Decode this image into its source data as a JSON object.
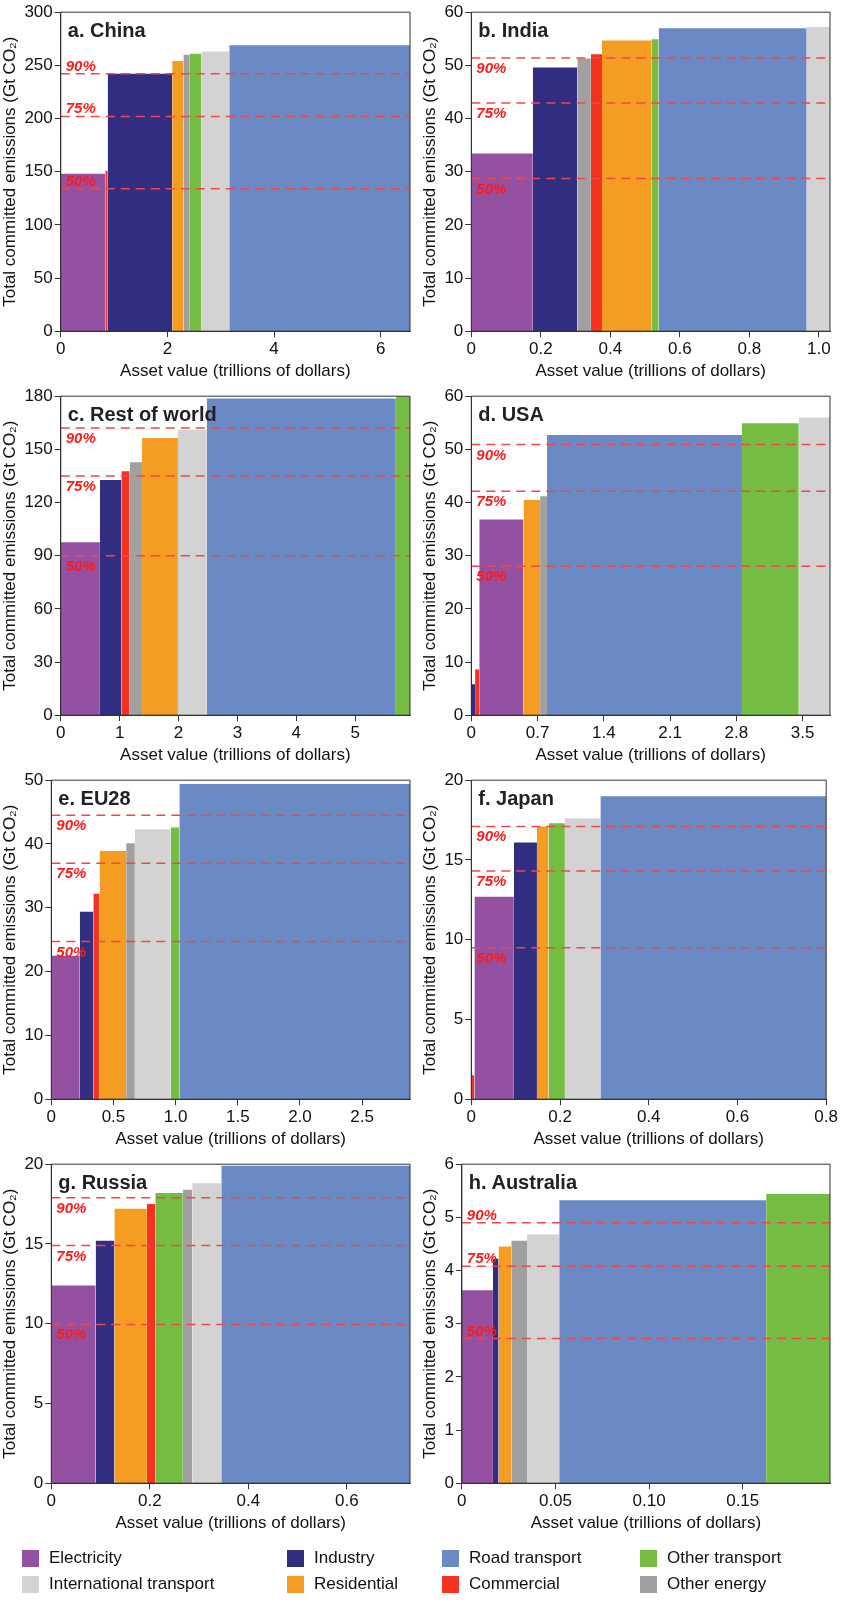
{
  "chart_data": [
    {
      "type": "area",
      "title": "a. China",
      "xlabel": "Asset value (trillions of dollars)",
      "ylabel": "Total committed emissions (Gt CO₂)",
      "xlim": [
        0,
        6.55
      ],
      "xticks": [
        0,
        2,
        4,
        6
      ],
      "ylim": [
        0,
        300
      ],
      "yticks": [
        0,
        50,
        100,
        150,
        200,
        250,
        300
      ],
      "legend": "bottom",
      "ref_lines": [
        {
          "axis": "y",
          "value": 242,
          "color": "#f04848",
          "line_style": "dashed"
        },
        {
          "axis": "y",
          "value": 202,
          "color": "#f04848",
          "line_style": "dashed"
        },
        {
          "axis": "y",
          "value": 134,
          "color": "#f04848",
          "line_style": "dashed"
        }
      ],
      "annotations": [
        {
          "text": "90%",
          "y": 242
        },
        {
          "text": "75%",
          "y": 202
        },
        {
          "text": "50%",
          "y": 134
        }
      ],
      "series": [
        {
          "name": "Electricity",
          "color": "#9551a1",
          "x": [
            0,
            0.835
          ],
          "values": [
            148,
            148
          ]
        },
        {
          "name": "Industry",
          "color": "#312e82",
          "x": [
            0.88,
            2.09
          ],
          "values": [
            242,
            242
          ]
        },
        {
          "name": "Road transport",
          "color": "#6b8ac5",
          "x": [
            3.16,
            6.55
          ],
          "values": [
            269,
            269
          ]
        },
        {
          "name": "Other transport",
          "color": "#74bd42",
          "x": [
            2.42,
            2.64
          ],
          "values": [
            261,
            261
          ]
        },
        {
          "name": "International transport",
          "color": "#d3d3d3",
          "x": [
            2.64,
            3.16
          ],
          "values": [
            263,
            263
          ]
        },
        {
          "name": "Residential",
          "color": "#f59d23",
          "x": [
            2.09,
            2.3
          ],
          "values": [
            254,
            254
          ]
        },
        {
          "name": "Commercial",
          "color": "#f5311f",
          "x": [
            0.835,
            0.88
          ],
          "values": [
            151,
            151
          ]
        },
        {
          "name": "Other energy",
          "color": "#a0a0a0",
          "x": [
            2.3,
            2.42
          ],
          "values": [
            260,
            260
          ]
        }
      ]
    },
    {
      "type": "area",
      "title": "b. India",
      "xlabel": "Asset value (trillions of dollars)",
      "ylabel": "Total committed emissions (Gt CO₂)",
      "xlim": [
        0,
        1.032
      ],
      "xticks": [
        0,
        0.2,
        0.4,
        0.6,
        0.8,
        {
          "value": 1,
          "label": "1.0"
        }
      ],
      "ylim": [
        0,
        60
      ],
      "yticks": [
        0,
        10,
        20,
        30,
        40,
        50,
        60
      ],
      "legend": "bottom",
      "ref_lines": [
        {
          "axis": "y",
          "value": 51.4,
          "color": "#f04848",
          "line_style": "dashed"
        },
        {
          "axis": "y",
          "value": 42.9,
          "color": "#f04848",
          "line_style": "dashed"
        },
        {
          "axis": "y",
          "value": 28.7,
          "color": "#f04848",
          "line_style": "dashed"
        }
      ],
      "annotations": [
        {
          "text": "90%",
          "y": 51.4
        },
        {
          "text": "75%",
          "y": 42.9
        },
        {
          "text": "50%",
          "y": 28.7
        }
      ],
      "series": [
        {
          "name": "Electricity",
          "color": "#9551a1",
          "x": [
            0,
            0.177
          ],
          "values": [
            33.4,
            33.4
          ]
        },
        {
          "name": "Industry",
          "color": "#312e82",
          "x": [
            0.177,
            0.305
          ],
          "values": [
            49.6,
            49.6
          ]
        },
        {
          "name": "Road transport",
          "color": "#6b8ac5",
          "x": [
            0.539,
            0.965
          ],
          "values": [
            57,
            57
          ]
        },
        {
          "name": "Other transport",
          "color": "#74bd42",
          "x": [
            0.518,
            0.539
          ],
          "values": [
            54.9,
            54.9
          ]
        },
        {
          "name": "International transport",
          "color": "#d3d3d3",
          "x": [
            0.965,
            1.032
          ],
          "values": [
            57.2,
            57.2
          ]
        },
        {
          "name": "Residential",
          "color": "#f59d23",
          "x": [
            0.376,
            0.518
          ],
          "values": [
            54.7,
            54.7
          ]
        },
        {
          "name": "Commercial",
          "color": "#f5311f",
          "x": [
            0.344,
            0.376
          ],
          "values": [
            52.1,
            52.1
          ]
        },
        {
          "name": "Other energy",
          "color": "#a0a0a0",
          "x": [
            0.305,
            0.344
          ],
          "values": [
            51.3,
            51.3
          ]
        }
      ]
    },
    {
      "type": "area",
      "title": "c. Rest of world",
      "xlabel": "Asset value (trillions of dollars)",
      "ylabel": "Total committed emissions (Gt CO₂)",
      "xlim": [
        0,
        5.93
      ],
      "xticks": [
        0,
        1,
        2,
        3,
        4,
        5
      ],
      "ylim": [
        0,
        180
      ],
      "yticks": [
        0,
        30,
        60,
        90,
        120,
        150,
        180
      ],
      "legend": "bottom",
      "ref_lines": [
        {
          "axis": "y",
          "value": 162,
          "color": "#f04848",
          "line_style": "dashed"
        },
        {
          "axis": "y",
          "value": 135,
          "color": "#f04848",
          "line_style": "dashed"
        },
        {
          "axis": "y",
          "value": 90,
          "color": "#f04848",
          "line_style": "dashed"
        }
      ],
      "annotations": [
        {
          "text": "90%",
          "y": 162
        },
        {
          "text": "75%",
          "y": 135
        },
        {
          "text": "50%",
          "y": 90
        }
      ],
      "series": [
        {
          "name": "Electricity",
          "color": "#9551a1",
          "x": [
            0,
            0.665
          ],
          "values": [
            97.6,
            97.6
          ]
        },
        {
          "name": "Industry",
          "color": "#312e82",
          "x": [
            0.665,
            1.03
          ],
          "values": [
            132.7,
            132.7
          ]
        },
        {
          "name": "Road transport",
          "color": "#6b8ac5",
          "x": [
            2.48,
            5.69
          ],
          "values": [
            178.7,
            178.7
          ]
        },
        {
          "name": "Other transport",
          "color": "#74bd42",
          "x": [
            5.69,
            5.93
          ],
          "values": [
            180,
            180
          ]
        },
        {
          "name": "International transport",
          "color": "#d3d3d3",
          "x": [
            1.99,
            2.48
          ],
          "values": [
            161,
            161
          ]
        },
        {
          "name": "Residential",
          "color": "#f59d23",
          "x": [
            1.38,
            1.99
          ],
          "values": [
            156.4,
            156.4
          ]
        },
        {
          "name": "Commercial",
          "color": "#f5311f",
          "x": [
            1.03,
            1.17
          ],
          "values": [
            137.7,
            137.7
          ]
        },
        {
          "name": "Other energy",
          "color": "#a0a0a0",
          "x": [
            1.17,
            1.38
          ],
          "values": [
            142.7,
            142.7
          ]
        }
      ]
    },
    {
      "type": "area",
      "title": "d. USA",
      "xlabel": "Asset value (trillions of dollars)",
      "ylabel": "Total committed emissions (Gt CO₂)",
      "xlim": [
        0,
        3.79
      ],
      "xticks": [
        0,
        0.7,
        1.4,
        2.1,
        2.8,
        3.5
      ],
      "ylim": [
        0,
        60
      ],
      "yticks": [
        0,
        10,
        20,
        30,
        40,
        50,
        60
      ],
      "legend": "bottom",
      "ref_lines": [
        {
          "axis": "y",
          "value": 50.9,
          "color": "#f04848",
          "line_style": "dashed"
        },
        {
          "axis": "y",
          "value": 42.1,
          "color": "#f04848",
          "line_style": "dashed"
        },
        {
          "axis": "y",
          "value": 28,
          "color": "#f04848",
          "line_style": "dashed"
        }
      ],
      "annotations": [
        {
          "text": "90%",
          "y": 50.9
        },
        {
          "text": "75%",
          "y": 42.1
        },
        {
          "text": "50%",
          "y": 28
        }
      ],
      "series": [
        {
          "name": "Electricity",
          "color": "#9551a1",
          "x": [
            0.084,
            0.552
          ],
          "values": [
            36.8,
            36.8
          ]
        },
        {
          "name": "Industry",
          "color": "#312e82",
          "x": [
            0,
            0.04
          ],
          "values": [
            5.8,
            5.8
          ]
        },
        {
          "name": "Road transport",
          "color": "#6b8ac5",
          "x": [
            0.8,
            2.86
          ],
          "values": [
            52.7,
            52.7
          ]
        },
        {
          "name": "Other transport",
          "color": "#74bd42",
          "x": [
            2.86,
            3.46
          ],
          "values": [
            54.9,
            54.9
          ]
        },
        {
          "name": "International transport",
          "color": "#d3d3d3",
          "x": [
            3.46,
            3.79
          ],
          "values": [
            56,
            56
          ]
        },
        {
          "name": "Residential",
          "color": "#f59d23",
          "x": [
            0.552,
            0.727
          ],
          "values": [
            40.5,
            40.5
          ]
        },
        {
          "name": "Commercial",
          "color": "#f5311f",
          "x": [
            0.04,
            0.084
          ],
          "values": [
            8.6,
            8.6
          ]
        },
        {
          "name": "Other energy",
          "color": "#a0a0a0",
          "x": [
            0.727,
            0.8
          ],
          "values": [
            41.2,
            41.2
          ]
        }
      ]
    },
    {
      "type": "area",
      "title": "e. EU28",
      "xlabel": "Asset value (trillions of dollars)",
      "ylabel": "Total committed emissions (Gt CO₂)",
      "xlim": [
        0,
        2.885
      ],
      "xticks": [
        0,
        0.5,
        {
          "value": 1,
          "label": "1.0"
        },
        1.5,
        {
          "value": 2,
          "label": "2.0"
        },
        2.5
      ],
      "ylim": [
        0,
        50
      ],
      "yticks": [
        0,
        10,
        20,
        30,
        40,
        50
      ],
      "legend": "bottom",
      "ref_lines": [
        {
          "axis": "y",
          "value": 44.5,
          "color": "#f04848",
          "line_style": "dashed"
        },
        {
          "axis": "y",
          "value": 37,
          "color": "#f04848",
          "line_style": "dashed"
        },
        {
          "axis": "y",
          "value": 24.7,
          "color": "#f04848",
          "line_style": "dashed"
        }
      ],
      "annotations": [
        {
          "text": "90%",
          "y": 44.5
        },
        {
          "text": "75%",
          "y": 37
        },
        {
          "text": "50%",
          "y": 24.7
        }
      ],
      "series": [
        {
          "name": "Electricity",
          "color": "#9551a1",
          "x": [
            0,
            0.229
          ],
          "values": [
            22.5,
            22.5
          ]
        },
        {
          "name": "Industry",
          "color": "#312e82",
          "x": [
            0.229,
            0.338
          ],
          "values": [
            29.4,
            29.4
          ]
        },
        {
          "name": "Road transport",
          "color": "#6b8ac5",
          "x": [
            1.03,
            2.885
          ],
          "values": [
            49.4,
            49.4
          ]
        },
        {
          "name": "Other transport",
          "color": "#74bd42",
          "x": [
            0.96,
            1.03
          ],
          "values": [
            42.6,
            42.6
          ]
        },
        {
          "name": "International transport",
          "color": "#d3d3d3",
          "x": [
            0.672,
            0.96
          ],
          "values": [
            42.3,
            42.3
          ]
        },
        {
          "name": "Residential",
          "color": "#f59d23",
          "x": [
            0.388,
            0.602
          ],
          "values": [
            38.9,
            38.9
          ]
        },
        {
          "name": "Commercial",
          "color": "#f5311f",
          "x": [
            0.338,
            0.388
          ],
          "values": [
            32.2,
            32.2
          ]
        },
        {
          "name": "Other energy",
          "color": "#a0a0a0",
          "x": [
            0.602,
            0.672
          ],
          "values": [
            40.1,
            40.1
          ]
        }
      ]
    },
    {
      "type": "area",
      "title": "f. Japan",
      "xlabel": "Asset value (trillions of dollars)",
      "ylabel": "Total committed emissions (Gt CO₂)",
      "xlim": [
        0,
        0.8
      ],
      "xticks": [
        0,
        0.2,
        0.4,
        0.6,
        0.8
      ],
      "ylim": [
        0,
        20
      ],
      "yticks": [
        0,
        5,
        10,
        15,
        20
      ],
      "legend": "bottom",
      "ref_lines": [
        {
          "axis": "y",
          "value": 17.1,
          "color": "#f04848",
          "line_style": "dashed"
        },
        {
          "axis": "y",
          "value": 14.3,
          "color": "#f04848",
          "line_style": "dashed"
        },
        {
          "axis": "y",
          "value": 9.5,
          "color": "#f04848",
          "line_style": "dashed"
        }
      ],
      "annotations": [
        {
          "text": "90%",
          "y": 17.1
        },
        {
          "text": "75%",
          "y": 14.3
        },
        {
          "text": "50%",
          "y": 9.5
        }
      ],
      "series": [
        {
          "name": "Electricity",
          "color": "#9551a1",
          "x": [
            0.007,
            0.096
          ],
          "values": [
            12.7,
            12.7
          ]
        },
        {
          "name": "Industry",
          "color": "#312e82",
          "x": [
            0.096,
            0.148
          ],
          "values": [
            16.1,
            16.1
          ]
        },
        {
          "name": "Road transport",
          "color": "#6b8ac5",
          "x": [
            0.291,
            0.8
          ],
          "values": [
            19,
            19
          ]
        },
        {
          "name": "Other transport",
          "color": "#74bd42",
          "x": [
            0.174,
            0.211
          ],
          "values": [
            17.3,
            17.3
          ]
        },
        {
          "name": "International transport",
          "color": "#d3d3d3",
          "x": [
            0.211,
            0.291
          ],
          "values": [
            17.6,
            17.6
          ]
        },
        {
          "name": "Residential",
          "color": "#f59d23",
          "x": [
            0.148,
            0.174
          ],
          "values": [
            17.1,
            17.1
          ]
        },
        {
          "name": "Commercial",
          "color": "#f5311f",
          "x": [
            0,
            0.007
          ],
          "values": [
            1.5,
            1.5
          ]
        }
      ]
    },
    {
      "type": "area",
      "title": "g. Russia",
      "xlabel": "Asset value (trillions of dollars)",
      "ylabel": "Total committed emissions (Gt CO₂)",
      "xlim": [
        0,
        0.728
      ],
      "xticks": [
        0,
        0.2,
        0.4,
        0.6
      ],
      "ylim": [
        0,
        20
      ],
      "yticks": [
        0,
        5,
        10,
        15,
        20
      ],
      "legend": "bottom",
      "ref_lines": [
        {
          "axis": "y",
          "value": 17.9,
          "color": "#f04848",
          "line_style": "dashed"
        },
        {
          "axis": "y",
          "value": 14.9,
          "color": "#f04848",
          "line_style": "dashed"
        },
        {
          "axis": "y",
          "value": 9.95,
          "color": "#f04848",
          "line_style": "dashed"
        }
      ],
      "annotations": [
        {
          "text": "90%",
          "y": 17.9
        },
        {
          "text": "75%",
          "y": 14.9
        },
        {
          "text": "50%",
          "y": 9.95
        }
      ],
      "series": [
        {
          "name": "Electricity",
          "color": "#9551a1",
          "x": [
            0,
            0.09
          ],
          "values": [
            12.4,
            12.4
          ]
        },
        {
          "name": "Industry",
          "color": "#312e82",
          "x": [
            0.09,
            0.128
          ],
          "values": [
            15.2,
            15.2
          ]
        },
        {
          "name": "Road transport",
          "color": "#6b8ac5",
          "x": [
            0.345,
            0.728
          ],
          "values": [
            19.9,
            19.9
          ]
        },
        {
          "name": "Other transport",
          "color": "#74bd42",
          "x": [
            0.211,
            0.267
          ],
          "values": [
            18.2,
            18.2
          ]
        },
        {
          "name": "International transport",
          "color": "#d3d3d3",
          "x": [
            0.286,
            0.345
          ],
          "values": [
            18.8,
            18.8
          ]
        },
        {
          "name": "Residential",
          "color": "#f59d23",
          "x": [
            0.128,
            0.194
          ],
          "values": [
            17.2,
            17.2
          ]
        },
        {
          "name": "Commercial",
          "color": "#f5311f",
          "x": [
            0.194,
            0.211
          ],
          "values": [
            17.5,
            17.5
          ]
        },
        {
          "name": "Other energy",
          "color": "#a0a0a0",
          "x": [
            0.267,
            0.286
          ],
          "values": [
            18.4,
            18.4
          ]
        }
      ]
    },
    {
      "type": "area",
      "title": "h. Australia",
      "xlabel": "Asset value (trillions of dollars)",
      "ylabel": "Total committed emissions (Gt CO₂)",
      "xlim": [
        0,
        0.1966
      ],
      "xticks": [
        0,
        0.05,
        {
          "value": 0.1,
          "label": "0.10"
        },
        0.15
      ],
      "ylim": [
        0,
        6
      ],
      "yticks": [
        0,
        1,
        2,
        3,
        4,
        5,
        6
      ],
      "legend": "bottom",
      "ref_lines": [
        {
          "axis": "y",
          "value": 4.9,
          "color": "#f04848",
          "line_style": "dashed"
        },
        {
          "axis": "y",
          "value": 4.08,
          "color": "#f04848",
          "line_style": "dashed"
        },
        {
          "axis": "y",
          "value": 2.72,
          "color": "#f04848",
          "line_style": "dashed"
        }
      ],
      "annotations": [
        {
          "text": "90%",
          "y": 4.9
        },
        {
          "text": "75%",
          "y": 4.08
        },
        {
          "text": "50%",
          "y": 2.72
        }
      ],
      "series": [
        {
          "name": "Electricity",
          "color": "#9551a1",
          "x": [
            0,
            0.0166
          ],
          "values": [
            3.63,
            3.63
          ]
        },
        {
          "name": "Industry",
          "color": "#312e82",
          "x": [
            0.0166,
            0.0196
          ],
          "values": [
            4.22,
            4.22
          ]
        },
        {
          "name": "Road transport",
          "color": "#6b8ac5",
          "x": [
            0.052,
            0.1625
          ],
          "values": [
            5.32,
            5.32
          ]
        },
        {
          "name": "Other transport",
          "color": "#74bd42",
          "x": [
            0.1625,
            0.1966
          ],
          "values": [
            5.44,
            5.44
          ]
        },
        {
          "name": "International transport",
          "color": "#d3d3d3",
          "x": [
            0.0348,
            0.052
          ],
          "values": [
            4.68,
            4.68
          ]
        },
        {
          "name": "Residential",
          "color": "#f59d23",
          "x": [
            0.0196,
            0.0264
          ],
          "values": [
            4.45,
            4.45
          ]
        },
        {
          "name": "Other energy",
          "color": "#a0a0a0",
          "x": [
            0.0264,
            0.0348
          ],
          "values": [
            4.56,
            4.56
          ]
        }
      ]
    }
  ]
}
